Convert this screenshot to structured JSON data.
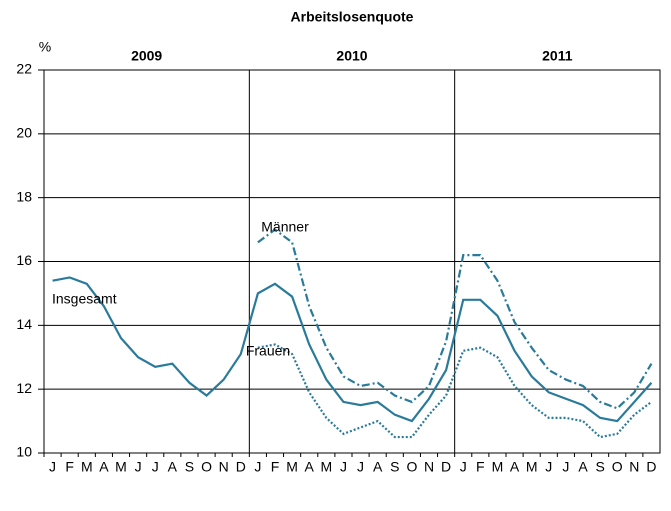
{
  "chart_data": {
    "type": "line",
    "title": "Arbeitslosenquote",
    "y_unit": "%",
    "years": [
      "2009",
      "2010",
      "2011"
    ],
    "categories": [
      "J",
      "F",
      "M",
      "A",
      "M",
      "J",
      "J",
      "A",
      "S",
      "O",
      "N",
      "D",
      "J",
      "F",
      "M",
      "A",
      "M",
      "J",
      "J",
      "A",
      "S",
      "O",
      "N",
      "D",
      "J",
      "F",
      "M",
      "A",
      "M",
      "J",
      "J",
      "A",
      "S",
      "O",
      "N",
      "D"
    ],
    "ylim": [
      10,
      22
    ],
    "yticks": [
      10,
      12,
      14,
      16,
      18,
      20,
      22
    ],
    "series": [
      {
        "name": "Insgesamt",
        "color": "#2a7b9b",
        "style": "solid",
        "values": [
          15.4,
          15.5,
          15.3,
          14.6,
          13.6,
          13.0,
          12.7,
          12.8,
          12.2,
          11.8,
          12.3,
          13.1,
          15.0,
          15.3,
          14.9,
          13.4,
          12.3,
          11.6,
          11.5,
          11.6,
          11.2,
          11.0,
          11.7,
          12.6,
          14.8,
          14.8,
          14.3,
          13.2,
          12.4,
          11.9,
          11.7,
          11.5,
          11.1,
          11.0,
          11.6,
          12.2
        ]
      },
      {
        "name": "Männer",
        "color": "#2a7b9b",
        "style": "dashdot",
        "values": [
          null,
          null,
          null,
          null,
          null,
          null,
          null,
          null,
          null,
          null,
          null,
          null,
          16.6,
          17.0,
          16.6,
          14.6,
          13.3,
          12.4,
          12.1,
          12.2,
          11.8,
          11.6,
          12.1,
          13.5,
          16.2,
          16.2,
          15.4,
          14.1,
          13.3,
          12.6,
          12.3,
          12.1,
          11.6,
          11.4,
          11.9,
          12.8
        ]
      },
      {
        "name": "Frauen",
        "color": "#2a7b9b",
        "style": "dotted",
        "values": [
          null,
          null,
          null,
          null,
          null,
          null,
          null,
          null,
          null,
          null,
          null,
          null,
          13.3,
          13.4,
          13.1,
          11.9,
          11.1,
          10.6,
          10.8,
          11.0,
          10.5,
          10.5,
          11.2,
          11.8,
          13.2,
          13.3,
          13.0,
          12.1,
          11.5,
          11.1,
          11.1,
          11.0,
          10.5,
          10.6,
          11.2,
          11.6
        ]
      }
    ]
  }
}
